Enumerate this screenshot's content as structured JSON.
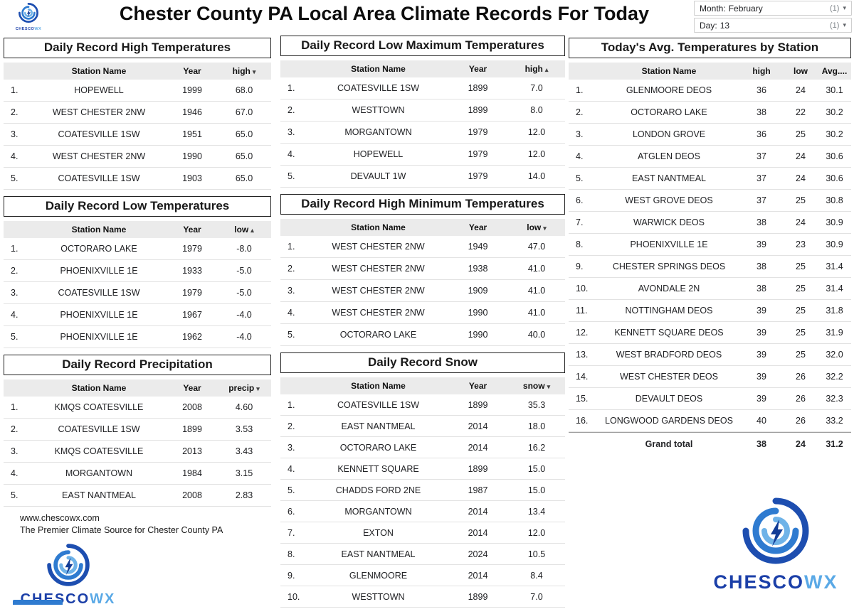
{
  "header": {
    "title": "Chester County PA Local Area Climate Records For Today",
    "logo_primary": "CHESCO",
    "logo_secondary": "WX"
  },
  "filters": {
    "month": {
      "label": "Month:",
      "value": "February",
      "count": "(1)",
      "caret": "▾"
    },
    "day": {
      "label": "Day:",
      "value": "13",
      "count": "(1)",
      "caret": "▾"
    }
  },
  "col_headers": {
    "station": "Station Name",
    "year": "Year"
  },
  "tables": {
    "record_high": {
      "title": "Daily Record High Temperatures",
      "metric": "high",
      "arrow": "▾",
      "rows": [
        {
          "station": "HOPEWELL",
          "year": "1999",
          "value": "68.0"
        },
        {
          "station": "WEST CHESTER 2NW",
          "year": "1946",
          "value": "67.0"
        },
        {
          "station": "COATESVILLE 1SW",
          "year": "1951",
          "value": "65.0"
        },
        {
          "station": "WEST CHESTER 2NW",
          "year": "1990",
          "value": "65.0"
        },
        {
          "station": "COATESVILLE 1SW",
          "year": "1903",
          "value": "65.0"
        }
      ]
    },
    "record_low": {
      "title": "Daily Record Low Temperatures",
      "metric": "low",
      "arrow": "▴",
      "rows": [
        {
          "station": "OCTORARO LAKE",
          "year": "1979",
          "value": "-8.0"
        },
        {
          "station": "PHOENIXVILLE 1E",
          "year": "1933",
          "value": "-5.0"
        },
        {
          "station": "COATESVILLE 1SW",
          "year": "1979",
          "value": "-5.0"
        },
        {
          "station": "PHOENIXVILLE 1E",
          "year": "1967",
          "value": "-4.0"
        },
        {
          "station": "PHOENIXVILLE 1E",
          "year": "1962",
          "value": "-4.0"
        }
      ]
    },
    "precip": {
      "title": "Daily Record Precipitation",
      "metric": "precip",
      "arrow": "▾",
      "rows": [
        {
          "station": "KMQS COATESVILLE",
          "year": "2008",
          "value": "4.60"
        },
        {
          "station": "COATESVILLE 1SW",
          "year": "1899",
          "value": "3.53"
        },
        {
          "station": "KMQS COATESVILLE",
          "year": "2013",
          "value": "3.43"
        },
        {
          "station": "MORGANTOWN",
          "year": "1984",
          "value": "3.15"
        },
        {
          "station": "EAST NANTMEAL",
          "year": "2008",
          "value": "2.83"
        }
      ]
    },
    "low_max": {
      "title": "Daily Record Low Maximum Temperatures",
      "metric": "high",
      "arrow": "▴",
      "rows": [
        {
          "station": "COATESVILLE 1SW",
          "year": "1899",
          "value": "7.0"
        },
        {
          "station": "WESTTOWN",
          "year": "1899",
          "value": "8.0"
        },
        {
          "station": "MORGANTOWN",
          "year": "1979",
          "value": "12.0"
        },
        {
          "station": "HOPEWELL",
          "year": "1979",
          "value": "12.0"
        },
        {
          "station": "DEVAULT 1W",
          "year": "1979",
          "value": "14.0"
        }
      ]
    },
    "high_min": {
      "title": "Daily Record High Minimum Temperatures",
      "metric": "low",
      "arrow": "▾",
      "rows": [
        {
          "station": "WEST CHESTER 2NW",
          "year": "1949",
          "value": "47.0"
        },
        {
          "station": "WEST CHESTER 2NW",
          "year": "1938",
          "value": "41.0"
        },
        {
          "station": "WEST CHESTER 2NW",
          "year": "1909",
          "value": "41.0"
        },
        {
          "station": "WEST CHESTER 2NW",
          "year": "1990",
          "value": "41.0"
        },
        {
          "station": "OCTORARO LAKE",
          "year": "1990",
          "value": "40.0"
        }
      ]
    },
    "snow": {
      "title": "Daily Record Snow",
      "metric": "snow",
      "arrow": "▾",
      "rows": [
        {
          "station": "COATESVILLE 1SW",
          "year": "1899",
          "value": "35.3"
        },
        {
          "station": "EAST NANTMEAL",
          "year": "2014",
          "value": "18.0"
        },
        {
          "station": "OCTORARO LAKE",
          "year": "2014",
          "value": "16.2"
        },
        {
          "station": "KENNETT SQUARE",
          "year": "1899",
          "value": "15.0"
        },
        {
          "station": "CHADDS FORD 2NE",
          "year": "1987",
          "value": "15.0"
        },
        {
          "station": "MORGANTOWN",
          "year": "2014",
          "value": "13.4"
        },
        {
          "station": "EXTON",
          "year": "2014",
          "value": "12.0"
        },
        {
          "station": "EAST NANTMEAL",
          "year": "2024",
          "value": "10.5"
        },
        {
          "station": "GLENMOORE",
          "year": "2014",
          "value": "8.4"
        },
        {
          "station": "WESTTOWN",
          "year": "1899",
          "value": "7.0"
        }
      ]
    },
    "avg": {
      "title": "Today's Avg. Temperatures by Station",
      "headers": {
        "station": "Station Name",
        "high": "high",
        "low": "low",
        "avg": "Avg...."
      },
      "rows": [
        {
          "station": "GLENMOORE DEOS",
          "high": "36",
          "low": "24",
          "avg": "30.1"
        },
        {
          "station": "OCTORARO LAKE",
          "high": "38",
          "low": "22",
          "avg": "30.2"
        },
        {
          "station": "LONDON GROVE",
          "high": "36",
          "low": "25",
          "avg": "30.2"
        },
        {
          "station": "ATGLEN DEOS",
          "high": "37",
          "low": "24",
          "avg": "30.6"
        },
        {
          "station": "EAST NANTMEAL",
          "high": "37",
          "low": "24",
          "avg": "30.6"
        },
        {
          "station": "WEST GROVE DEOS",
          "high": "37",
          "low": "25",
          "avg": "30.8"
        },
        {
          "station": "WARWICK DEOS",
          "high": "38",
          "low": "24",
          "avg": "30.9"
        },
        {
          "station": "PHOENIXVILLE 1E",
          "high": "39",
          "low": "23",
          "avg": "30.9"
        },
        {
          "station": "CHESTER SPRINGS DEOS",
          "high": "38",
          "low": "25",
          "avg": "31.4"
        },
        {
          "station": "AVONDALE 2N",
          "high": "38",
          "low": "25",
          "avg": "31.4"
        },
        {
          "station": "NOTTINGHAM DEOS",
          "high": "39",
          "low": "25",
          "avg": "31.8"
        },
        {
          "station": "KENNETT SQUARE DEOS",
          "high": "39",
          "low": "25",
          "avg": "31.9"
        },
        {
          "station": "WEST BRADFORD DEOS",
          "high": "39",
          "low": "25",
          "avg": "32.0"
        },
        {
          "station": "WEST CHESTER DEOS",
          "high": "39",
          "low": "26",
          "avg": "32.2"
        },
        {
          "station": "DEVAULT DEOS",
          "high": "39",
          "low": "26",
          "avg": "32.3"
        },
        {
          "station": "LONGWOOD GARDENS DEOS",
          "high": "40",
          "low": "26",
          "avg": "33.2"
        }
      ],
      "grand_total": {
        "label": "Grand total",
        "high": "38",
        "low": "24",
        "avg": "31.2"
      }
    }
  },
  "footer": {
    "url": "www.chescowx.com",
    "tagline": "The Premier Climate Source for Chester County PA"
  }
}
